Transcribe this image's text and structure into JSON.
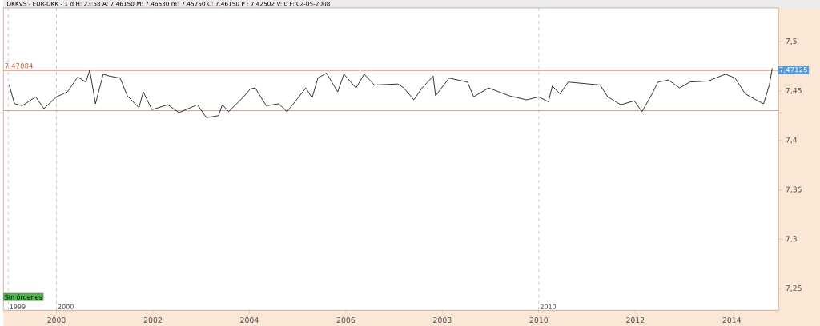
{
  "chart_data": {
    "type": "line",
    "title": "DKKVS - EUR-DKK - 1 d H: 23:58 A: 7,46150 M: 7,46530 m: 7,45750 C: 7,46150 P : 7,42502 V: 0 F: 02-05-2008",
    "series": [
      {
        "color": "#000000",
        "x": [
          1999.02,
          1999.13,
          1999.29,
          1999.57,
          1999.74,
          2000.0,
          2000.23,
          2000.44,
          2000.61,
          2000.69,
          2000.81,
          2000.97,
          2001.1,
          2001.32,
          2001.47,
          2001.71,
          2001.8,
          2001.98,
          2002.31,
          2002.54,
          2002.92,
          2003.11,
          2003.36,
          2003.44,
          2003.57,
          2003.86,
          2004.02,
          2004.12,
          2004.35,
          2004.61,
          2004.78,
          2005.01,
          2005.17,
          2005.3,
          2005.42,
          2005.6,
          2005.83,
          2005.96,
          2006.21,
          2006.38,
          2006.59,
          2007.08,
          2007.2,
          2007.41,
          2007.58,
          2007.81,
          2007.86,
          2008.14,
          2008.52,
          2008.65,
          2008.96,
          2009.39,
          2009.75,
          2010.0,
          2010.2,
          2010.28,
          2010.44,
          2010.61,
          2011.04,
          2011.27,
          2011.43,
          2011.7,
          2011.98,
          2012.14,
          2012.36,
          2012.47,
          2012.69,
          2012.92,
          2013.13,
          2013.51,
          2013.87,
          2014.07,
          2014.28,
          2014.5,
          2014.66,
          2014.78,
          2014.84
        ],
        "values": [
          7.456,
          7.437,
          7.435,
          7.444,
          7.432,
          7.444,
          7.449,
          7.464,
          7.459,
          7.471,
          7.437,
          7.467,
          7.465,
          7.463,
          7.445,
          7.433,
          7.449,
          7.431,
          7.436,
          7.428,
          7.436,
          7.423,
          7.425,
          7.436,
          7.429,
          7.443,
          7.452,
          7.453,
          7.435,
          7.437,
          7.429,
          7.443,
          7.453,
          7.443,
          7.463,
          7.468,
          7.449,
          7.467,
          7.453,
          7.467,
          7.456,
          7.457,
          7.453,
          7.441,
          7.453,
          7.465,
          7.445,
          7.463,
          7.459,
          7.444,
          7.453,
          7.445,
          7.441,
          7.444,
          7.439,
          7.455,
          7.447,
          7.459,
          7.457,
          7.456,
          7.444,
          7.436,
          7.44,
          7.429,
          7.448,
          7.459,
          7.461,
          7.453,
          7.459,
          7.46,
          7.467,
          7.463,
          7.447,
          7.441,
          7.437,
          7.456,
          7.473
        ]
      }
    ],
    "xlim": [
      1998.9,
      2014.97
    ],
    "ylim": [
      7.228,
      7.534
    ],
    "xticks": [
      2000,
      2002,
      2004,
      2006,
      2008,
      2010,
      2012,
      2014
    ],
    "yticks": [
      {
        "value": 7.25,
        "label": "7,25"
      },
      {
        "value": 7.3,
        "label": "7,3"
      },
      {
        "value": 7.35,
        "label": "7,35"
      },
      {
        "value": 7.4,
        "label": "7,4"
      },
      {
        "value": 7.45,
        "label": "7,45"
      },
      {
        "value": 7.5,
        "label": "7,5"
      }
    ],
    "ref_lines": [
      {
        "axis": "y",
        "value": 7.47084,
        "label": "7,47084",
        "color": "#d06040"
      },
      {
        "axis": "y",
        "value": 7.43,
        "color": "#e0a090"
      },
      {
        "axis": "x",
        "value": 1999,
        "label": "1999",
        "color": "#b0b0b0",
        "line_style": "dashed"
      },
      {
        "axis": "x",
        "value": 2000,
        "label": "2000",
        "color": "#b0b0b0",
        "line_style": "dashed"
      },
      {
        "axis": "x",
        "value": 2010,
        "label": "2010",
        "color": "#b0b0b0",
        "line_style": "dashed"
      }
    ],
    "annotations": [
      "Sin órdenes",
      {
        "text": "7,47125",
        "x": 2014.84,
        "y": 7.47125
      }
    ]
  }
}
